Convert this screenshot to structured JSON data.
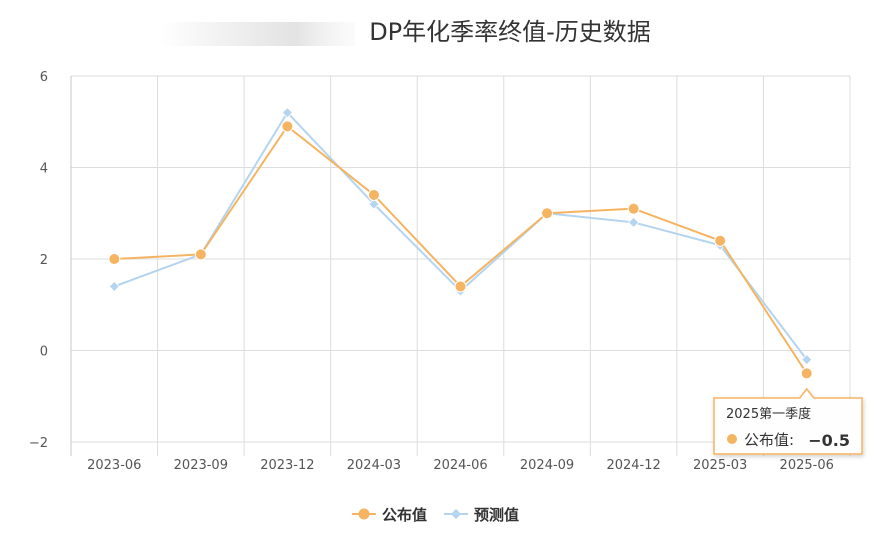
{
  "chart_data": {
    "type": "line",
    "title": "DP年化季率终值-历史数据",
    "categories": [
      "2023-06",
      "2023-09",
      "2023-12",
      "2024-03",
      "2024-06",
      "2024-09",
      "2024-12",
      "2025-03",
      "2025-06"
    ],
    "y_ticks": [
      "6",
      "4",
      "2",
      "0",
      "−2"
    ],
    "ylim": [
      -2,
      6
    ],
    "grid": true,
    "legend_position": "bottom",
    "series": [
      {
        "name": "公布值",
        "color": "#f5b461",
        "marker": "circle",
        "values": [
          2.0,
          2.1,
          4.9,
          3.4,
          1.4,
          3.0,
          3.1,
          2.4,
          -0.5
        ]
      },
      {
        "name": "预测值",
        "color": "#b4d4ef",
        "marker": "diamond",
        "values": [
          1.4,
          2.1,
          5.2,
          3.2,
          1.3,
          3.0,
          2.8,
          2.3,
          -0.2
        ]
      }
    ],
    "tooltip": {
      "title": "2025第一季度",
      "series_label": "公布值: ",
      "value": "−0.5",
      "category_index": 8
    }
  }
}
